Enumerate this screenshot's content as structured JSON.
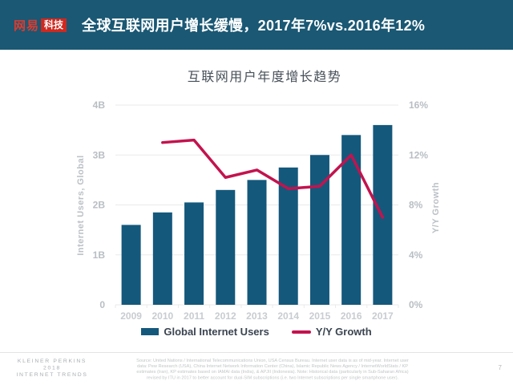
{
  "header": {
    "logo": {
      "brand": "网易",
      "badge": "科技"
    },
    "title": "全球互联网用户增长缓慢，2017年7%vs.2016年12%"
  },
  "chart_data": {
    "type": "bar+line combo",
    "title": "互联网用户年度增长趋势",
    "categories": [
      "2009",
      "2010",
      "2011",
      "2012",
      "2013",
      "2014",
      "2015",
      "2016",
      "2017"
    ],
    "series": [
      {
        "name": "Global Internet Users",
        "type": "bar",
        "axis": "left",
        "color": "#14587C",
        "values": [
          1.6,
          1.85,
          2.05,
          2.3,
          2.5,
          2.75,
          3.0,
          3.4,
          3.6
        ]
      },
      {
        "name": "Y/Y Growth",
        "type": "line",
        "axis": "right",
        "color": "#C3134E",
        "values": [
          null,
          13,
          13.2,
          10.2,
          10.8,
          9.3,
          9.5,
          12,
          7
        ]
      }
    ],
    "left_axis": {
      "label": "Internet Users, Global",
      "min": 0,
      "max": 4,
      "ticks": [
        "0",
        "1B",
        "2B",
        "3B",
        "4B"
      ]
    },
    "right_axis": {
      "label": "Y/Y Growth",
      "min": 0,
      "max": 16,
      "ticks": [
        "0%",
        "4%",
        "8%",
        "12%",
        "16%"
      ]
    },
    "grid": true,
    "legend_position": "bottom"
  },
  "footer": {
    "brand_lines": [
      "KLEINER PERKINS",
      "2018",
      "INTERNET TRENDS"
    ],
    "source_lines": [
      "Source: United Nations / International Telecommunications Union, USA Census Bureau. Internet user data is as of mid-year. Internet user",
      "data: Pew Research (USA), China Internet Network Information Center (China), Islamic Republic News Agency / InternetWorldStats / KP",
      "estimates (Iran), KP estimates based on IAMAI data (India), & APJII (Indonesia). Note: Historical data (particularly in Sub-Saharan Africa)",
      "revised by ITU in 2017 to better account for dual-SIM subscriptions (i.e. two Internet subscriptions per single smartphone user)."
    ],
    "page_number": "7"
  },
  "colors": {
    "header_bg": "#1A5874",
    "logo_red": "#CE2920",
    "bar": "#14587C",
    "line": "#C3134E",
    "gridline": "#EAEAEA"
  }
}
